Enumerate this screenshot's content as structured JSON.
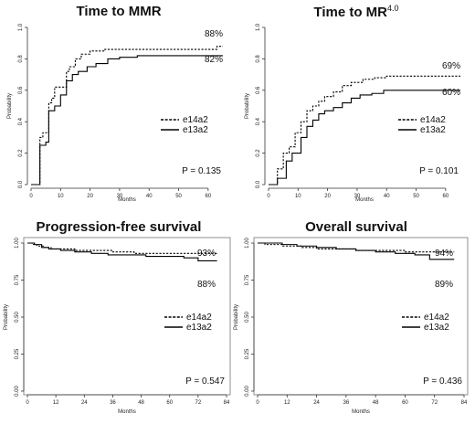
{
  "chart_data": [
    {
      "type": "line",
      "title": "Time to MMR",
      "title_sup": "",
      "xlabel": "Months",
      "ylabel": "Probability",
      "xlim": [
        0,
        65
      ],
      "ylim": [
        0,
        1
      ],
      "xticks": [
        "0",
        "10",
        "20",
        "30",
        "40",
        "50",
        "60"
      ],
      "yticks": [
        "0.0",
        "0.2",
        "0.4",
        "0.6",
        "0.8",
        "1.0"
      ],
      "xtick_values": [
        0,
        10,
        20,
        30,
        40,
        50,
        60
      ],
      "ytick_values": [
        0,
        0.2,
        0.4,
        0.6,
        0.8,
        1.0
      ],
      "grid": false,
      "legend_position": "right",
      "pvalue": "P = 0.135",
      "annotations": [
        "88%",
        "82%"
      ],
      "series": [
        {
          "name": "e14a2",
          "style": "dashed",
          "x": [
            0,
            2,
            3,
            4,
            6,
            7,
            8,
            10,
            12,
            13,
            15,
            17,
            20,
            25,
            36,
            63,
            65
          ],
          "y": [
            0,
            0,
            0.3,
            0.33,
            0.52,
            0.55,
            0.62,
            0.62,
            0.72,
            0.75,
            0.8,
            0.83,
            0.85,
            0.86,
            0.86,
            0.88,
            0.88
          ]
        },
        {
          "name": "e13a2",
          "style": "solid",
          "x": [
            0,
            3,
            5,
            6,
            8,
            10,
            12,
            14,
            16,
            19,
            22,
            26,
            30,
            36,
            65
          ],
          "y": [
            0,
            0.25,
            0.27,
            0.47,
            0.5,
            0.57,
            0.66,
            0.7,
            0.72,
            0.75,
            0.77,
            0.8,
            0.81,
            0.82,
            0.82
          ]
        }
      ]
    },
    {
      "type": "line",
      "title": "Time to MR",
      "title_sup": "4.0",
      "xlabel": "Months",
      "ylabel": "Probability",
      "xlim": [
        0,
        65
      ],
      "ylim": [
        0,
        1
      ],
      "xticks": [
        "0",
        "10",
        "20",
        "30",
        "40",
        "50",
        "60"
      ],
      "yticks": [
        "0.0",
        "0.2",
        "0.4",
        "0.6",
        "0.8",
        "1.0"
      ],
      "xtick_values": [
        0,
        10,
        20,
        30,
        40,
        50,
        60
      ],
      "ytick_values": [
        0,
        0.2,
        0.4,
        0.6,
        0.8,
        1.0
      ],
      "grid": false,
      "legend_position": "right",
      "pvalue": "P = 0.101",
      "annotations": [
        "69%",
        "60%"
      ],
      "series": [
        {
          "name": "e14a2",
          "style": "dashed",
          "x": [
            0,
            3,
            5,
            7,
            9,
            11,
            13,
            15,
            17,
            19,
            22,
            25,
            28,
            32,
            36,
            40,
            65
          ],
          "y": [
            0,
            0.1,
            0.2,
            0.24,
            0.33,
            0.4,
            0.47,
            0.5,
            0.53,
            0.56,
            0.59,
            0.63,
            0.65,
            0.67,
            0.68,
            0.69,
            0.69
          ]
        },
        {
          "name": "e13a2",
          "style": "solid",
          "x": [
            0,
            3,
            6,
            8,
            11,
            13,
            15,
            17,
            19,
            22,
            25,
            28,
            31,
            35,
            39,
            65
          ],
          "y": [
            0,
            0.04,
            0.15,
            0.2,
            0.3,
            0.37,
            0.41,
            0.45,
            0.47,
            0.49,
            0.52,
            0.55,
            0.57,
            0.58,
            0.6,
            0.6
          ]
        }
      ]
    },
    {
      "type": "line",
      "title": "Progression-free survival",
      "title_sup": "",
      "xlabel": "Months",
      "ylabel": "Probability",
      "xlim": [
        0,
        84
      ],
      "ylim": [
        0,
        1
      ],
      "xticks": [
        "0",
        "12",
        "24",
        "36",
        "48",
        "60",
        "72",
        "84"
      ],
      "yticks": [
        "0.00",
        "0.25",
        "0.50",
        "0.75",
        "1.00"
      ],
      "xtick_values": [
        0,
        12,
        24,
        36,
        48,
        60,
        72,
        84
      ],
      "ytick_values": [
        0,
        0.25,
        0.5,
        0.75,
        1.0
      ],
      "grid": false,
      "legend_position": "right",
      "pvalue": "P = 0.547",
      "annotations": [
        "93%",
        "88%"
      ],
      "series": [
        {
          "name": "e14a2",
          "style": "dashed",
          "x": [
            0,
            2,
            4,
            7,
            10,
            14,
            20,
            28,
            36,
            45,
            55,
            80
          ],
          "y": [
            1,
            0.99,
            0.98,
            0.97,
            0.96,
            0.96,
            0.95,
            0.95,
            0.94,
            0.93,
            0.93,
            0.93
          ]
        },
        {
          "name": "e13a2",
          "style": "solid",
          "x": [
            0,
            3,
            6,
            9,
            14,
            20,
            27,
            34,
            42,
            50,
            58,
            66,
            72,
            80
          ],
          "y": [
            1,
            0.99,
            0.97,
            0.96,
            0.95,
            0.94,
            0.93,
            0.92,
            0.92,
            0.91,
            0.91,
            0.9,
            0.88,
            0.88
          ]
        }
      ]
    },
    {
      "type": "line",
      "title": "Overall survival",
      "title_sup": "",
      "xlabel": "Months",
      "ylabel": "Probability",
      "xlim": [
        0,
        84
      ],
      "ylim": [
        0,
        1
      ],
      "xticks": [
        "0",
        "12",
        "24",
        "36",
        "48",
        "60",
        "72",
        "84"
      ],
      "yticks": [
        "0.00",
        "0.25",
        "0.50",
        "0.75",
        "1.00"
      ],
      "xtick_values": [
        0,
        12,
        24,
        36,
        48,
        60,
        72,
        84
      ],
      "ytick_values": [
        0,
        0.25,
        0.5,
        0.75,
        1.0
      ],
      "grid": false,
      "legend_position": "right",
      "pvalue": "P = 0.436",
      "annotations": [
        "94%",
        "89%"
      ],
      "series": [
        {
          "name": "e14a2",
          "style": "dashed",
          "x": [
            0,
            3,
            6,
            10,
            14,
            18,
            24,
            30,
            40,
            52,
            60,
            80
          ],
          "y": [
            1,
            0.99,
            0.99,
            0.98,
            0.98,
            0.97,
            0.96,
            0.96,
            0.95,
            0.95,
            0.94,
            0.94
          ]
        },
        {
          "name": "e13a2",
          "style": "solid",
          "x": [
            0,
            5,
            10,
            16,
            24,
            32,
            40,
            48,
            56,
            64,
            70,
            80
          ],
          "y": [
            1,
            1,
            0.99,
            0.98,
            0.97,
            0.96,
            0.95,
            0.94,
            0.93,
            0.92,
            0.89,
            0.89
          ]
        }
      ]
    }
  ]
}
